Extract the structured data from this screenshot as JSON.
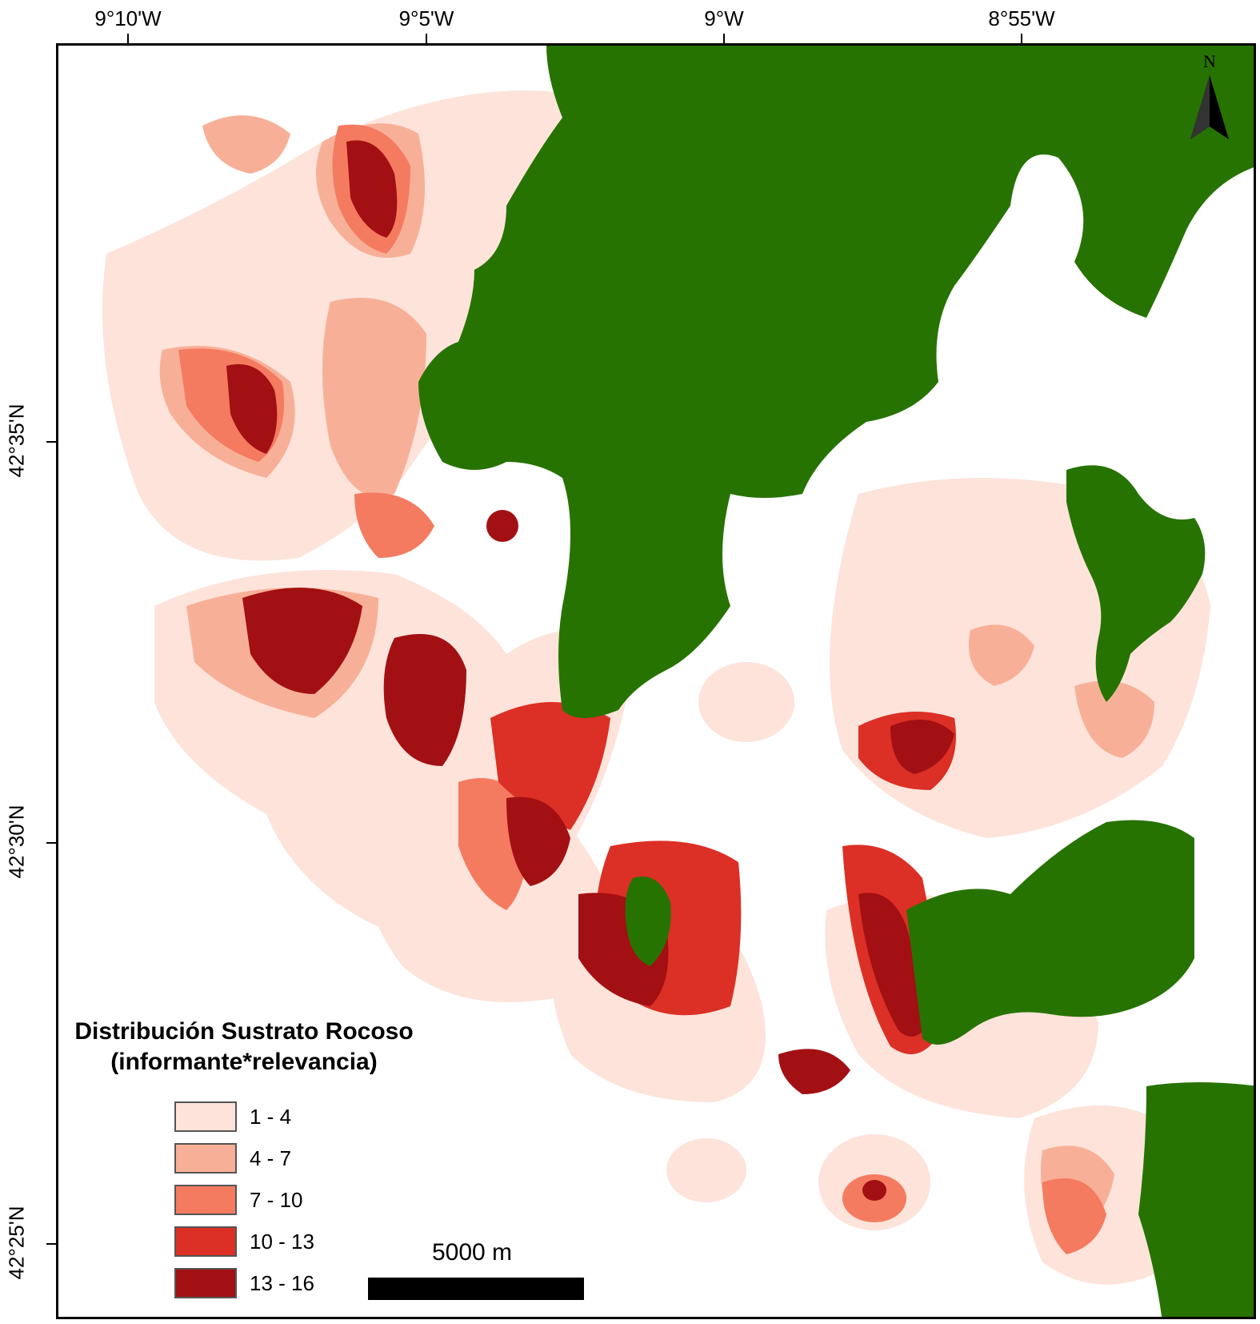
{
  "map": {
    "top_ticks": [
      "9°10'W",
      "9°5'W",
      "9°W",
      "8°55'W"
    ],
    "left_ticks": [
      "42°35'N",
      "42°30'N",
      "42°25'N"
    ],
    "north_label": "N"
  },
  "legend": {
    "title_line1": "Distribución Sustrato Rocoso",
    "title_line2": "(informante*relevancia)",
    "classes": [
      {
        "label": "1 - 4",
        "color": "#fde3da"
      },
      {
        "label": "4 - 7",
        "color": "#f7b097"
      },
      {
        "label": "7 - 10",
        "color": "#f47b60"
      },
      {
        "label": "10 - 13",
        "color": "#dc2f25"
      },
      {
        "label": "13 - 16",
        "color": "#a31014"
      }
    ]
  },
  "scale_bar": {
    "label": "5000 m"
  },
  "colors": {
    "land": "#277301",
    "water": "#ffffff"
  }
}
